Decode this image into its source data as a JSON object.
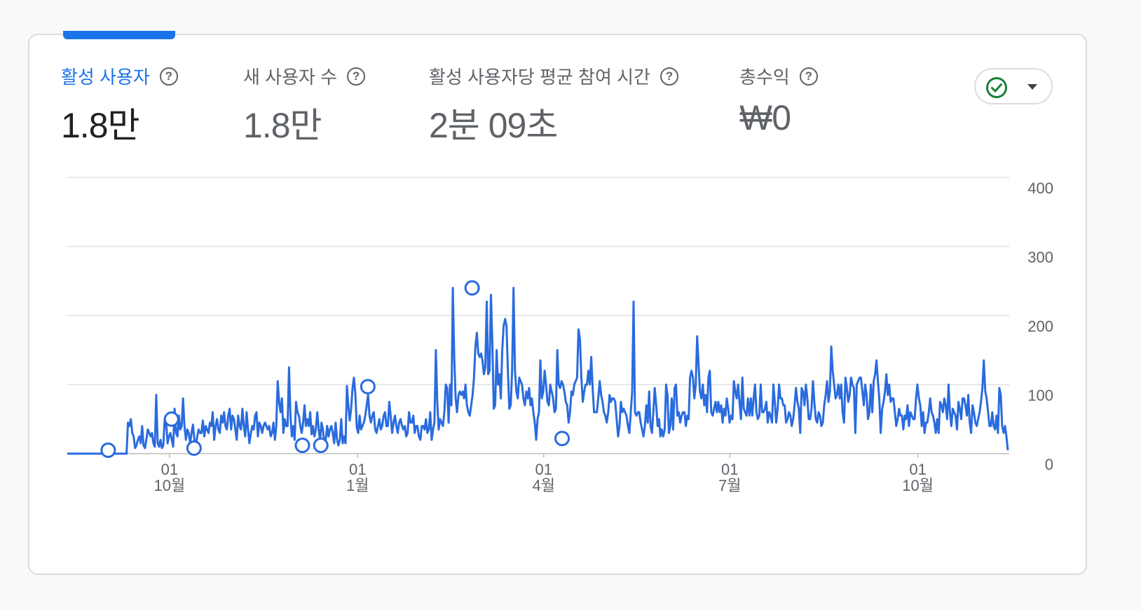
{
  "metrics": [
    {
      "label": "활성 사용자",
      "value": "1.8만",
      "active": true
    },
    {
      "label": "새 사용자 수",
      "value": "1.8만",
      "active": false
    },
    {
      "label": "활성 사용자당 평균 참여 시간",
      "value": "2분 09초",
      "active": false
    },
    {
      "label": "총수익",
      "value": "₩0",
      "active": false
    }
  ],
  "status_button": {
    "icon": "check-circle-icon",
    "dropdown_icon": "caret-down-icon",
    "check_color": "#188038"
  },
  "colors": {
    "accent": "#1a73e8",
    "line": "#2a6bde",
    "grid": "#e0e0e0",
    "text": "#5f6368"
  },
  "chart_data": {
    "type": "line",
    "x_axis": {
      "type": "date",
      "start": "2023-08-12",
      "end": "2024-11-14",
      "ticks": [
        {
          "date": "2023-10-01",
          "day": "01",
          "month": "10월"
        },
        {
          "date": "2024-01-01",
          "day": "01",
          "month": "1월"
        },
        {
          "date": "2024-04-01",
          "day": "01",
          "month": "4월"
        },
        {
          "date": "2024-07-01",
          "day": "01",
          "month": "7월"
        },
        {
          "date": "2024-10-01",
          "day": "01",
          "month": "10월"
        }
      ]
    },
    "y_axis": {
      "ylim": [
        0,
        400
      ],
      "ticks": [
        "0",
        "100",
        "200",
        "300",
        "400"
      ],
      "position": "right"
    },
    "grid": true,
    "series": [
      {
        "color": "#2a6bde",
        "values": [
          0,
          0,
          0,
          0,
          0,
          0,
          0,
          0,
          0,
          0,
          0,
          0,
          0,
          0,
          0,
          0,
          0,
          0,
          0,
          0,
          0,
          0,
          0,
          0,
          0,
          0,
          0,
          0,
          0,
          0,
          0,
          0,
          0,
          0,
          0,
          0,
          0,
          0,
          0,
          0,
          0,
          0,
          0,
          45,
          40,
          50,
          30,
          25,
          8,
          12,
          20,
          25,
          15,
          40,
          12,
          8,
          20,
          35,
          30,
          25,
          30,
          15,
          10,
          85,
          15,
          10,
          20,
          8,
          12,
          50,
          45,
          15,
          25,
          30,
          20,
          10,
          65,
          30,
          25,
          55,
          35,
          40,
          80,
          40,
          20,
          35,
          30,
          15,
          30,
          42,
          20,
          12,
          25,
          35,
          30,
          30,
          48,
          25,
          40,
          35,
          30,
          45,
          40,
          60,
          20,
          40,
          50,
          35,
          30,
          55,
          45,
          60,
          40,
          35,
          55,
          65,
          35,
          55,
          50,
          35,
          20,
          55,
          40,
          35,
          65,
          40,
          25,
          60,
          35,
          15,
          30,
          40,
          35,
          55,
          60,
          25,
          45,
          40,
          30,
          40,
          45,
          40,
          35,
          40,
          25,
          30,
          45,
          20,
          40,
          105,
          75,
          60,
          80,
          30,
          50,
          40,
          40,
          125,
          55,
          25,
          40,
          20,
          75,
          60,
          55,
          40,
          30,
          45,
          70,
          40,
          50,
          40,
          60,
          28,
          40,
          25,
          35,
          60,
          35,
          18,
          45,
          35,
          15,
          20,
          40,
          25,
          35,
          40,
          30,
          15,
          45,
          20,
          12,
          20,
          50,
          15,
          25,
          15,
          98,
          70,
          48,
          65,
          95,
          110,
          85,
          38,
          30,
          55,
          35,
          40,
          45,
          55,
          70,
          85,
          55,
          45,
          55,
          60,
          35,
          30,
          40,
          50,
          35,
          40,
          55,
          60,
          40,
          40,
          75,
          55,
          30,
          45,
          55,
          40,
          30,
          45,
          50,
          40,
          35,
          40,
          25,
          30,
          60,
          45,
          45,
          55,
          30,
          40,
          40,
          25,
          20,
          40,
          40,
          35,
          50,
          30,
          35,
          60,
          20,
          35,
          45,
          150,
          75,
          35,
          50,
          45,
          40,
          60,
          100,
          95,
          45,
          100,
          70,
          240,
          140,
          80,
          60,
          85,
          90,
          85,
          90,
          80,
          100,
          70,
          60,
          55,
          70,
          85,
          110,
          155,
          175,
          145,
          140,
          145,
          135,
          115,
          125,
          220,
          115,
          120,
          230,
          160,
          65,
          70,
          150,
          100,
          115,
          80,
          150,
          185,
          195,
          185,
          120,
          65,
          70,
          120,
          240,
          120,
          90,
          80,
          110,
          105,
          100,
          80,
          70,
          90,
          80,
          95,
          70,
          80,
          60,
          45,
          20,
          50,
          60,
          135,
          80,
          90,
          120,
          100,
          75,
          70,
          100,
          90,
          80,
          60,
          65,
          150,
          100,
          95,
          105,
          100,
          90,
          75,
          70,
          45,
          60,
          90,
          85,
          100,
          105,
          110,
          180,
          165,
          110,
          75,
          90,
          100,
          100,
          120,
          100,
          140,
          95,
          60,
          60,
          60,
          80,
          105,
          85,
          75,
          60,
          55,
          45,
          60,
          85,
          75,
          80,
          80,
          75,
          50,
          25,
          40,
          75,
          60,
          65,
          60,
          55,
          40,
          30,
          60,
          90,
          220,
          60,
          55,
          60,
          60,
          45,
          35,
          25,
          40,
          70,
          45,
          90,
          40,
          30,
          60,
          95,
          70,
          40,
          50,
          25,
          35,
          25,
          35,
          100,
          85,
          30,
          40,
          80,
          35,
          95,
          100,
          55,
          60,
          45,
          55,
          60,
          60,
          40,
          55,
          50,
          110,
          120,
          110,
          80,
          100,
          170,
          130,
          90,
          80,
          100,
          70,
          85,
          60,
          110,
          120,
          60,
          55,
          65,
          75,
          60,
          75,
          60,
          70,
          45,
          65,
          55,
          80,
          65,
          45,
          55,
          50,
          105,
          90,
          80,
          100,
          75,
          50,
          110,
          65,
          60,
          55,
          80,
          55,
          80,
          55,
          80,
          100,
          60,
          50,
          55,
          100,
          60,
          60,
          65,
          75,
          45,
          60,
          55,
          45,
          100,
          75,
          45,
          65,
          100,
          80,
          80,
          70,
          70,
          45,
          50,
          60,
          55,
          40,
          50,
          70,
          95,
          75,
          65,
          30,
          95,
          90,
          70,
          100,
          80,
          50,
          50,
          65,
          105,
          75,
          50,
          45,
          60,
          55,
          40,
          45,
          70,
          85,
          105,
          75,
          90,
          155,
          120,
          100,
          80,
          85,
          100,
          80,
          100,
          60,
          45,
          110,
          95,
          75,
          85,
          110,
          100,
          95,
          30,
          100,
          105,
          110,
          110,
          90,
          70,
          100,
          85,
          50,
          60,
          100,
          60,
          105,
          115,
          135,
          105,
          80,
          30,
          65,
          75,
          90,
          115,
          85,
          100,
          75,
          80,
          80,
          60,
          40,
          50,
          65,
          55,
          55,
          35,
          55,
          50,
          70,
          40,
          60,
          55,
          50,
          50,
          80,
          100,
          80,
          70,
          40,
          60,
          30,
          45,
          45,
          60,
          80,
          60,
          55,
          45,
          30,
          50,
          30,
          75,
          70,
          60,
          80,
          70,
          50,
          100,
          60,
          40,
          65,
          60,
          55,
          35,
          75,
          65,
          50,
          80,
          80,
          70,
          55,
          85,
          45,
          30,
          70,
          60,
          45,
          40,
          50,
          60,
          75,
          95,
          135,
          90,
          80,
          60,
          40,
          40,
          60,
          40,
          35,
          55,
          30,
          95,
          85,
          40,
          30,
          40,
          25,
          5
        ]
      }
    ],
    "annotations": [
      {
        "date": "2023-09-01",
        "value": 5
      },
      {
        "date": "2023-10-02",
        "value": 50
      },
      {
        "date": "2023-10-13",
        "value": 8
      },
      {
        "date": "2023-12-05",
        "value": 12
      },
      {
        "date": "2023-12-14",
        "value": 12
      },
      {
        "date": "2024-01-06",
        "value": 97
      },
      {
        "date": "2024-02-26",
        "value": 240
      },
      {
        "date": "2024-04-10",
        "value": 22
      }
    ]
  }
}
